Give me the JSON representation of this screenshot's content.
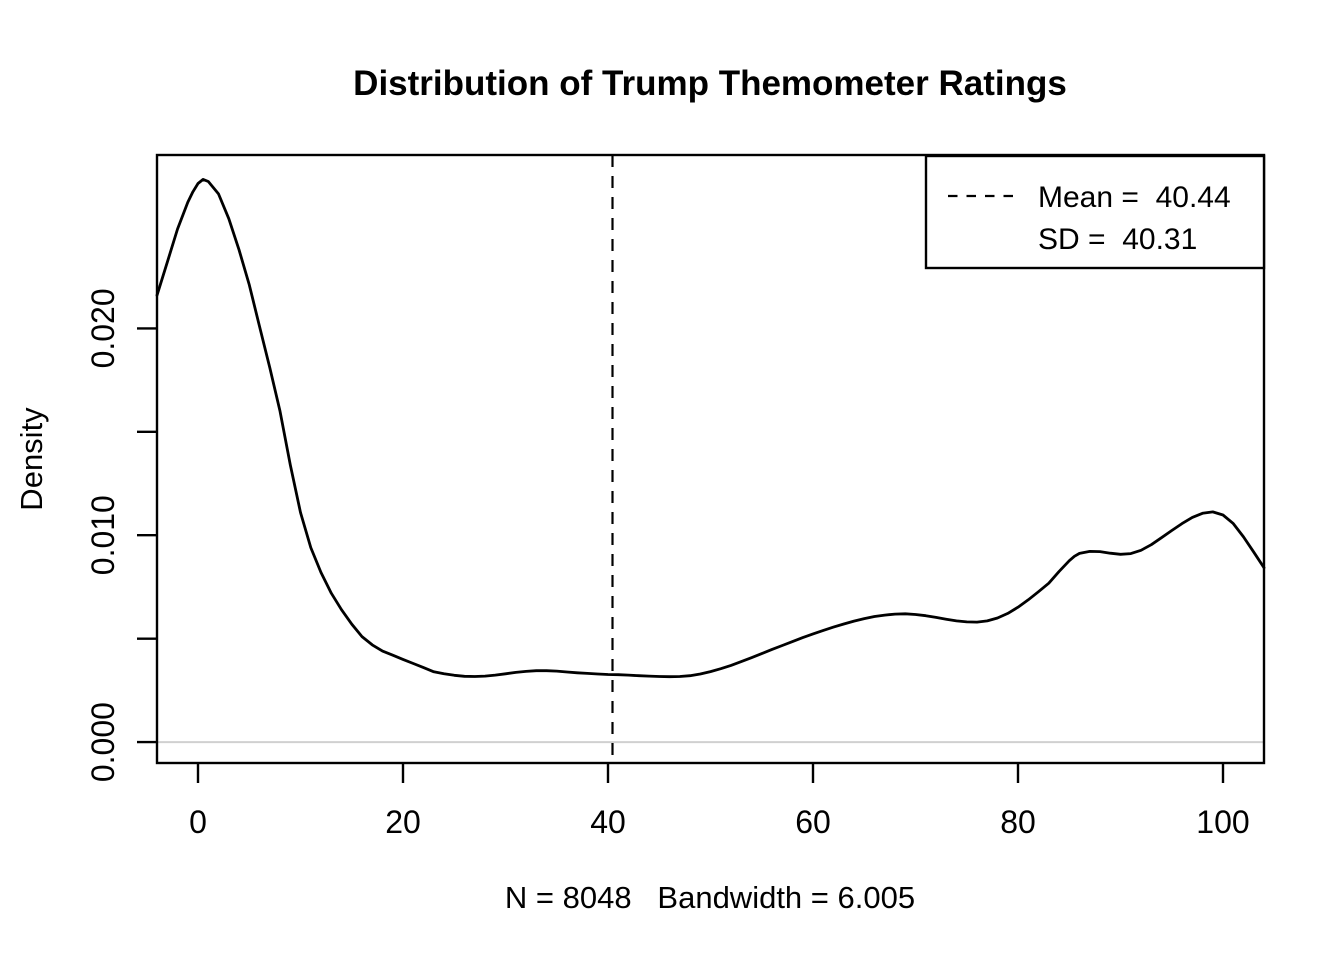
{
  "chart_data": {
    "type": "line",
    "subtype": "kernel-density",
    "title": "Distribution of Trump Themometer Ratings",
    "xlabel": "N = 8048   Bandwidth = 6.005",
    "ylabel": "Density",
    "n": 8048,
    "bandwidth": 6.005,
    "mean": 40.44,
    "sd": 40.31,
    "xlim": [
      -4,
      104
    ],
    "ylim": [
      -0.00101,
      0.02838
    ],
    "x_ticks": [
      0,
      20,
      40,
      60,
      80,
      100
    ],
    "y_ticks": [
      0,
      0.005,
      0.01,
      0.015,
      0.02
    ],
    "y_tick_labels": [
      "0.000",
      "",
      "0.010",
      "",
      "0.020"
    ],
    "grid": false,
    "zero_line_color": "#d0d0d0",
    "curve_color": "#000000",
    "mean_line_style": "dashed",
    "legend": {
      "position": "topright",
      "entries": [
        {
          "sample": "dashed-line",
          "label": "Mean =  40.44"
        },
        {
          "sample": "",
          "label": "SD =  40.31"
        }
      ]
    },
    "series": [
      {
        "name": "density",
        "points": [
          [
            -4,
            0.0216
          ],
          [
            -3,
            0.0232
          ],
          [
            -2,
            0.0248
          ],
          [
            -1,
            0.0261
          ],
          [
            -0.5,
            0.0266
          ],
          [
            0,
            0.027
          ],
          [
            0.5,
            0.0272
          ],
          [
            1,
            0.0271
          ],
          [
            2,
            0.0265
          ],
          [
            3,
            0.0253
          ],
          [
            4,
            0.0238
          ],
          [
            5,
            0.0221
          ],
          [
            6,
            0.0201
          ],
          [
            7,
            0.0181
          ],
          [
            8,
            0.016
          ],
          [
            9,
            0.0134
          ],
          [
            10,
            0.0111
          ],
          [
            11,
            0.0094
          ],
          [
            12,
            0.0082
          ],
          [
            13,
            0.0072
          ],
          [
            14,
            0.0064
          ],
          [
            15,
            0.0057
          ],
          [
            16,
            0.0051
          ],
          [
            17,
            0.0047
          ],
          [
            18,
            0.0044
          ],
          [
            19,
            0.0042
          ],
          [
            20,
            0.004
          ],
          [
            21,
            0.0038
          ],
          [
            22,
            0.0036
          ],
          [
            23,
            0.0034
          ],
          [
            24,
            0.0033
          ],
          [
            25,
            0.00323
          ],
          [
            26,
            0.00318
          ],
          [
            27,
            0.00317
          ],
          [
            28,
            0.00319
          ],
          [
            29,
            0.00324
          ],
          [
            30,
            0.0033
          ],
          [
            31,
            0.00337
          ],
          [
            32,
            0.00342
          ],
          [
            33,
            0.00345
          ],
          [
            34,
            0.00345
          ],
          [
            35,
            0.00343
          ],
          [
            36,
            0.00339
          ],
          [
            37,
            0.00335
          ],
          [
            38,
            0.00332
          ],
          [
            39,
            0.00329
          ],
          [
            40,
            0.00327
          ],
          [
            41,
            0.00326
          ],
          [
            42,
            0.00324
          ],
          [
            43,
            0.00321
          ],
          [
            44,
            0.00319
          ],
          [
            45,
            0.00317
          ],
          [
            46,
            0.00316
          ],
          [
            47,
            0.00317
          ],
          [
            48,
            0.00321
          ],
          [
            49,
            0.00329
          ],
          [
            50,
            0.00341
          ],
          [
            51,
            0.00355
          ],
          [
            52,
            0.00371
          ],
          [
            53,
            0.00389
          ],
          [
            54,
            0.00408
          ],
          [
            55,
            0.00428
          ],
          [
            56,
            0.00448
          ],
          [
            57,
            0.00467
          ],
          [
            58,
            0.00486
          ],
          [
            59,
            0.00505
          ],
          [
            60,
            0.00523
          ],
          [
            61,
            0.0054
          ],
          [
            62,
            0.00556
          ],
          [
            63,
            0.00571
          ],
          [
            64,
            0.00585
          ],
          [
            65,
            0.00597
          ],
          [
            66,
            0.00607
          ],
          [
            67,
            0.00614
          ],
          [
            68,
            0.00619
          ],
          [
            69,
            0.0062
          ],
          [
            70,
            0.00617
          ],
          [
            71,
            0.00611
          ],
          [
            72,
            0.00603
          ],
          [
            73,
            0.00594
          ],
          [
            74,
            0.00586
          ],
          [
            75,
            0.00581
          ],
          [
            76,
            0.0058
          ],
          [
            77,
            0.00586
          ],
          [
            78,
            0.006
          ],
          [
            79,
            0.00622
          ],
          [
            80,
            0.00652
          ],
          [
            81,
            0.00688
          ],
          [
            82,
            0.00727
          ],
          [
            83,
            0.00768
          ],
          [
            84,
            0.00824
          ],
          [
            85,
            0.00877
          ],
          [
            85.5,
            0.00898
          ],
          [
            86,
            0.00912
          ],
          [
            87,
            0.00922
          ],
          [
            88,
            0.00921
          ],
          [
            89,
            0.00913
          ],
          [
            90,
            0.00908
          ],
          [
            91,
            0.00911
          ],
          [
            92,
            0.00927
          ],
          [
            93,
            0.00954
          ],
          [
            94,
            0.00988
          ],
          [
            95,
            0.01023
          ],
          [
            96,
            0.01056
          ],
          [
            97,
            0.01086
          ],
          [
            98,
            0.01106
          ],
          [
            99,
            0.01113
          ],
          [
            100,
            0.01098
          ],
          [
            101,
            0.01056
          ],
          [
            102,
            0.00992
          ],
          [
            103,
            0.00918
          ],
          [
            104,
            0.00843
          ]
        ]
      }
    ]
  }
}
